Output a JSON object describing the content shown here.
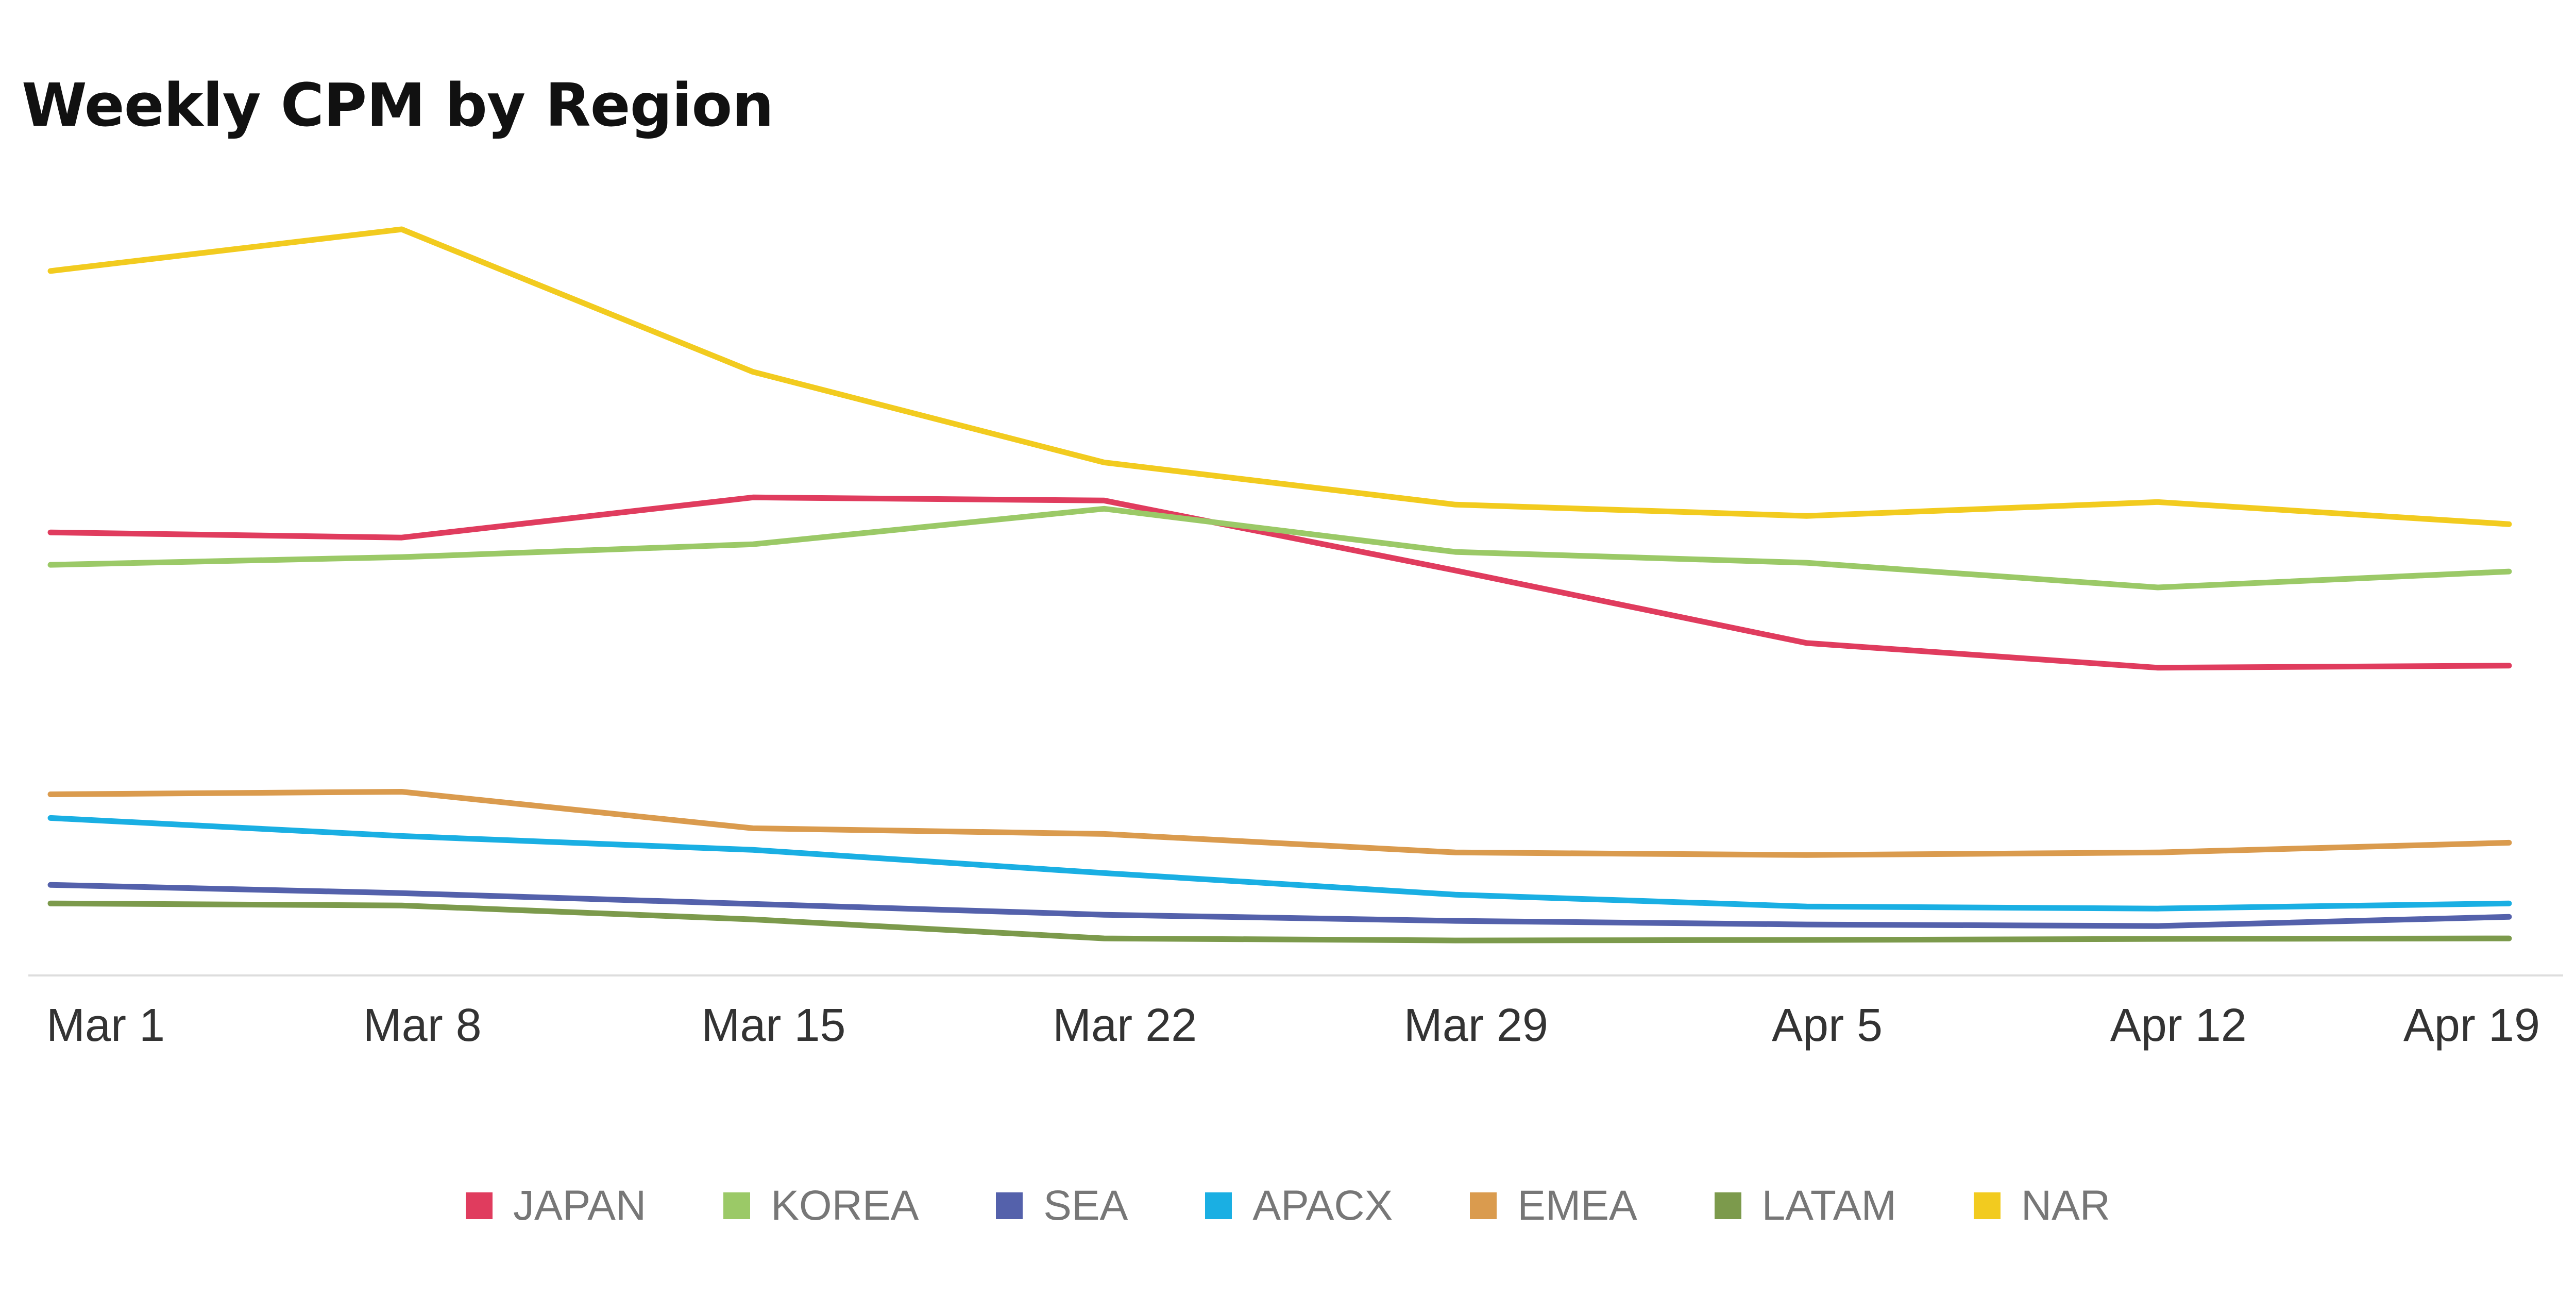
{
  "chart_data": {
    "type": "line",
    "title": "Weekly CPM by Region",
    "xlabel": "",
    "ylabel": "",
    "x": [
      "Mar 1",
      "Mar 8",
      "Mar 15",
      "Mar 22",
      "Mar 29",
      "Apr 5",
      "Apr 12",
      "Apr 19"
    ],
    "ylim": [
      0,
      145
    ],
    "grid": false,
    "legend_position": "bottom",
    "series": [
      {
        "name": "JAPAN",
        "color": "#E03C5E",
        "values": [
          86.1,
          85.1,
          92.9,
          92.3,
          78.7,
          64.6,
          59.8,
          60.2
        ]
      },
      {
        "name": "KOREA",
        "color": "#9BC967",
        "values": [
          79.8,
          81.3,
          83.8,
          90.7,
          82.3,
          80.2,
          75.4,
          78.5
        ]
      },
      {
        "name": "SEA",
        "color": "#5461AB",
        "values": [
          17.6,
          16.0,
          13.9,
          11.8,
          10.6,
          9.9,
          9.6,
          11.4
        ]
      },
      {
        "name": "APACX",
        "color": "#1AAFE3",
        "values": [
          30.6,
          27.1,
          24.4,
          19.9,
          15.7,
          13.4,
          13.0,
          14.0
        ]
      },
      {
        "name": "EMEA",
        "color": "#DA9B4E",
        "values": [
          35.2,
          35.7,
          28.6,
          27.5,
          23.9,
          23.4,
          23.9,
          25.8
        ]
      },
      {
        "name": "LATAM",
        "color": "#7C9A4C",
        "values": [
          14.0,
          13.6,
          10.9,
          7.2,
          6.8,
          6.9,
          7.1,
          7.2
        ]
      },
      {
        "name": "NAR",
        "color": "#F2CB1F",
        "values": [
          136.9,
          145.0,
          117.3,
          99.7,
          91.5,
          89.3,
          92.0,
          87.7
        ]
      }
    ]
  }
}
